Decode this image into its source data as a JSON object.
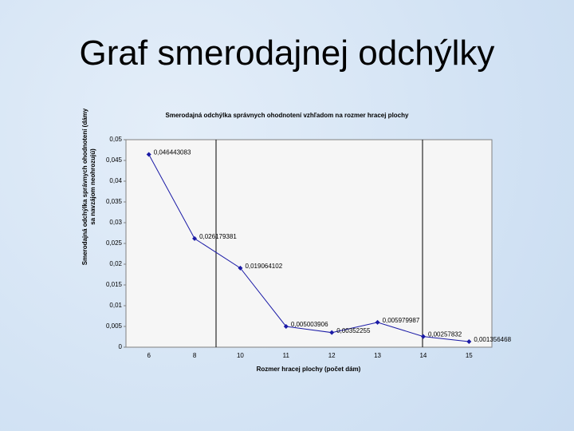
{
  "slide_title": "Graf smerodajnej odchýlky",
  "chart_data": {
    "type": "line",
    "title": "Smerodajná odchýlka správnych ohodnotení vzhľadom na rozmer hracej plochy",
    "x_label": "Rozmer hracej plochy (počet dám)",
    "y_label": "Smerodajná odchýlka správnych ohodnotení (dámy sa navzájom neohrozujú)",
    "categories": [
      "6",
      "8",
      "10",
      "11",
      "12",
      "13",
      "14",
      "15"
    ],
    "values": [
      0.046443083,
      0.026179381,
      0.019064102,
      0.005003906,
      0.00352255,
      0.005979987,
      0.00257832,
      0.001356468
    ],
    "value_labels": [
      "0,046443083",
      "0,026179381",
      "0,019064102",
      "0,005003906",
      "0,00352255",
      "0,005979987",
      "0,00257832",
      "0,001356468"
    ],
    "color": "#1a1aa6",
    "ylim": [
      0,
      0.05
    ],
    "yticks": [
      0,
      {
        "value": 0.005,
        "label": "0,005"
      },
      {
        "value": 0.01,
        "label": "0,01"
      },
      {
        "value": 0.015,
        "label": "0,015"
      },
      {
        "value": 0.02,
        "label": "0,02"
      },
      {
        "value": 0.025,
        "label": "0,025"
      },
      {
        "value": 0.03,
        "label": "0,03"
      },
      {
        "value": 0.035,
        "label": "0,035"
      },
      {
        "value": 0.04,
        "label": "0,04"
      },
      {
        "value": 0.045,
        "label": "0,045"
      },
      {
        "value": 0.05,
        "label": "0,05"
      }
    ]
  }
}
